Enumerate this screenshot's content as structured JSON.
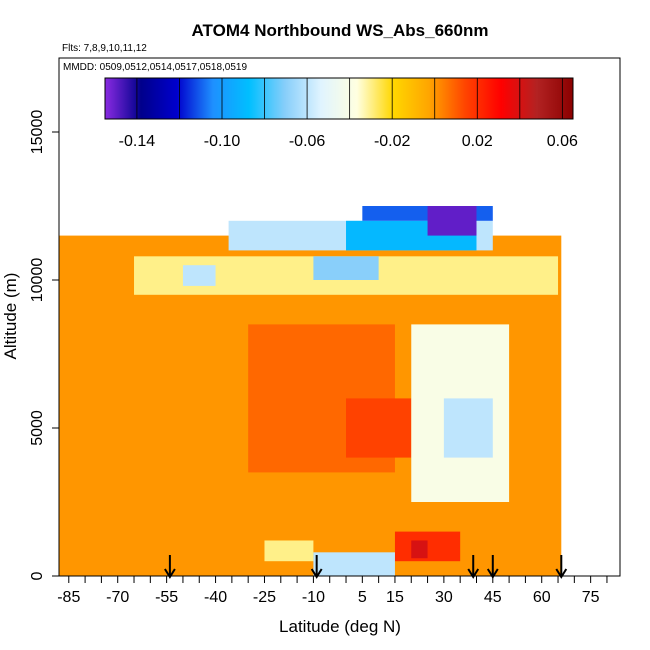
{
  "chart_data": {
    "type": "heatmap",
    "title": "ATOM4 Northbound WS_Abs_660nm",
    "subtitle_lines": [
      "Flts: 7,8,9,10,11,12",
      "MMDD: 0509,0512,0514,0517,0518,0519"
    ],
    "xlabel": "Latitude (deg N)",
    "ylabel": "Altitude (m)",
    "xlim": [
      -88,
      84
    ],
    "ylim": [
      0,
      17500
    ],
    "x_ticks_minor": [
      -85,
      -80,
      -75,
      -70,
      -65,
      -60,
      -55,
      -50,
      -45,
      -40,
      -35,
      -30,
      -25,
      -20,
      -15,
      -10,
      -5,
      0,
      5,
      10,
      15,
      20,
      25,
      30,
      35,
      40,
      45,
      50,
      55,
      60,
      65,
      70,
      75,
      80
    ],
    "x_tick_labels": [
      {
        "value": -85,
        "label": "-85"
      },
      {
        "value": -70,
        "label": "-70"
      },
      {
        "value": -55,
        "label": "-55"
      },
      {
        "value": -40,
        "label": "-40"
      },
      {
        "value": -25,
        "label": "-25"
      },
      {
        "value": -10,
        "label": "-10"
      },
      {
        "value": 5,
        "label": "5"
      },
      {
        "value": 15,
        "label": "15"
      },
      {
        "value": 30,
        "label": "30"
      },
      {
        "value": 45,
        "label": "45"
      },
      {
        "value": 60,
        "label": "60"
      },
      {
        "value": 75,
        "label": "75"
      }
    ],
    "y_tick_labels": [
      {
        "value": 0,
        "label": "0"
      },
      {
        "value": 5000,
        "label": "5000"
      },
      {
        "value": 10000,
        "label": "10000"
      },
      {
        "value": 15000,
        "label": "15000"
      }
    ],
    "colorbar": {
      "min": -0.155,
      "max": 0.065,
      "tick_labels": [
        {
          "value": -0.14,
          "label": "-0.14"
        },
        {
          "value": -0.1,
          "label": "-0.10"
        },
        {
          "value": -0.06,
          "label": "-0.06"
        },
        {
          "value": -0.02,
          "label": "-0.02"
        },
        {
          "value": 0.02,
          "label": "0.02"
        },
        {
          "value": 0.06,
          "label": "0.06"
        }
      ],
      "colors": [
        "#8a2be2",
        "#00008b",
        "#0000cd",
        "#1e90ff",
        "#00bfff",
        "#87cefa",
        "#e0f4ff",
        "#ffffe0",
        "#ffd700",
        "#ffa500",
        "#ff4500",
        "#ff0000",
        "#b22222",
        "#8b0000"
      ]
    },
    "arrows_latitude": [
      -54,
      -9,
      39,
      45,
      66
    ],
    "regions": [
      {
        "lat": [
          -88,
          66
        ],
        "alt": [
          0,
          11500
        ],
        "value": 0.0
      },
      {
        "lat": [
          -30,
          15
        ],
        "alt": [
          3500,
          8500
        ],
        "value": 0.008
      },
      {
        "lat": [
          0,
          20
        ],
        "alt": [
          4000,
          6000
        ],
        "value": 0.015
      },
      {
        "lat": [
          20,
          50
        ],
        "alt": [
          2500,
          8500
        ],
        "value": -0.04
      },
      {
        "lat": [
          30,
          45
        ],
        "alt": [
          4000,
          6000
        ],
        "value": -0.06
      },
      {
        "lat": [
          15,
          35
        ],
        "alt": [
          500,
          1500
        ],
        "value": 0.02
      },
      {
        "lat": [
          20,
          25
        ],
        "alt": [
          600,
          1200
        ],
        "value": 0.04
      },
      {
        "lat": [
          -25,
          -10
        ],
        "alt": [
          500,
          1200
        ],
        "value": -0.03
      },
      {
        "lat": [
          -10,
          15
        ],
        "alt": [
          0,
          800
        ],
        "value": -0.06
      },
      {
        "lat": [
          -65,
          65
        ],
        "alt": [
          9500,
          10800
        ],
        "value": -0.03
      },
      {
        "lat": [
          -50,
          -40
        ],
        "alt": [
          9800,
          10500
        ],
        "value": -0.06
      },
      {
        "lat": [
          -10,
          10
        ],
        "alt": [
          10000,
          10800
        ],
        "value": -0.07
      },
      {
        "lat": [
          -36,
          45
        ],
        "alt": [
          11000,
          12000
        ],
        "value": -0.06
      },
      {
        "lat": [
          0,
          40
        ],
        "alt": [
          11000,
          12000
        ],
        "value": -0.09
      },
      {
        "lat": [
          5,
          45
        ],
        "alt": [
          12000,
          12500
        ],
        "value": -0.11
      },
      {
        "lat": [
          25,
          40
        ],
        "alt": [
          11500,
          12500
        ],
        "value": -0.15
      }
    ]
  }
}
